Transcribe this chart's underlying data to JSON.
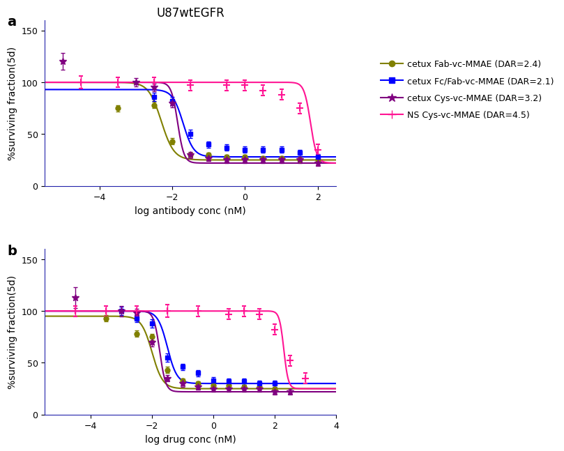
{
  "title_a": "U87wtEGFR",
  "panel_a_label": "a",
  "panel_b_label": "b",
  "xlabel_a": "log antibody conc (nM)",
  "xlabel_b": "log drug conc (nM)",
  "ylabel": "%surviving fraction(5d)",
  "ylim": [
    0,
    160
  ],
  "yticks": [
    0,
    50,
    100,
    150
  ],
  "legend_labels": [
    "cetux Fab-vc-MMAE (DAR=2.4)",
    "cetux Fc/Fab-vc-MMAE (DAR=2.1)",
    "cetux Cys-vc-MMAE (DAR=3.2)",
    "NS Cys-vc-MMAE (DAR=4.5)"
  ],
  "colors": [
    "#808000",
    "#0000FF",
    "#800080",
    "#FF1493"
  ],
  "markers": [
    "o",
    "s",
    "*",
    "+"
  ],
  "panel_a": {
    "xlim": [
      -5.5,
      2.5
    ],
    "xticks": [
      -4,
      -2,
      0,
      2
    ],
    "series": [
      {
        "name": "cetux Fab-vc-MMAE",
        "color": "#808000",
        "marker": "o",
        "x_data": [
          -3.5,
          -2.5,
          -2.0,
          -1.5,
          -1.0,
          -0.5,
          0.0,
          0.5,
          1.0,
          1.5,
          2.0
        ],
        "y_data": [
          75,
          78,
          43,
          30,
          30,
          28,
          28,
          27,
          27,
          25,
          25
        ],
        "y_err": [
          3,
          3,
          3,
          2,
          2,
          2,
          2,
          2,
          2,
          2,
          2
        ],
        "ec50": -2.3,
        "hill": 2.5,
        "top": 100,
        "bottom": 25
      },
      {
        "name": "cetux Fc/Fab-vc-MMAE",
        "color": "#0000FF",
        "marker": "s",
        "x_data": [
          -2.5,
          -2.0,
          -1.5,
          -1.0,
          -0.5,
          0.0,
          0.5,
          1.0,
          1.5,
          2.0
        ],
        "y_data": [
          86,
          82,
          50,
          40,
          37,
          35,
          35,
          35,
          32,
          28
        ],
        "y_err": [
          4,
          4,
          4,
          3,
          3,
          3,
          3,
          3,
          3,
          3
        ],
        "ec50": -1.7,
        "hill": 3.0,
        "top": 93,
        "bottom": 28
      },
      {
        "name": "cetux Cys-vc-MMAE",
        "color": "#800080",
        "marker": "*",
        "x_data": [
          -5.0,
          -3.0,
          -2.5,
          -2.0,
          -1.5,
          -1.0,
          -0.5,
          0.0,
          0.5,
          1.0,
          1.5,
          2.0
        ],
        "y_data": [
          120,
          100,
          95,
          80,
          30,
          27,
          25,
          25,
          25,
          25,
          25,
          22
        ],
        "y_err": [
          8,
          4,
          4,
          4,
          3,
          3,
          3,
          3,
          3,
          3,
          3,
          3
        ],
        "ec50": -1.85,
        "hill": 5.0,
        "top": 100,
        "bottom": 22
      },
      {
        "name": "NS Cys-vc-MMAE",
        "color": "#FF1493",
        "marker": "+",
        "x_data": [
          -4.5,
          -3.5,
          -2.5,
          -1.5,
          -0.5,
          0.0,
          0.5,
          1.0,
          1.5,
          2.0
        ],
        "y_data": [
          100,
          100,
          100,
          97,
          97,
          97,
          92,
          88,
          75,
          35
        ],
        "y_err": [
          6,
          5,
          5,
          5,
          5,
          5,
          5,
          5,
          5,
          5
        ],
        "ec50": 1.8,
        "hill": 5.0,
        "top": 100,
        "bottom": 22
      }
    ]
  },
  "panel_b": {
    "xlim": [
      -5.5,
      4.0
    ],
    "xticks": [
      -4,
      -2,
      0,
      2,
      4
    ],
    "series": [
      {
        "name": "cetux Fab-vc-MMAE",
        "color": "#808000",
        "marker": "o",
        "x_data": [
          -3.5,
          -2.5,
          -2.0,
          -1.5,
          -1.0,
          -0.5,
          0.0,
          0.5,
          1.0,
          1.5,
          2.0
        ],
        "y_data": [
          93,
          78,
          75,
          43,
          33,
          30,
          28,
          28,
          27,
          27,
          25
        ],
        "y_err": [
          3,
          3,
          3,
          3,
          2,
          2,
          2,
          2,
          2,
          2,
          2
        ],
        "ec50": -2.0,
        "hill": 2.5,
        "top": 95,
        "bottom": 25
      },
      {
        "name": "cetux Fc/Fab-vc-MMAE",
        "color": "#0000FF",
        "marker": "s",
        "x_data": [
          -3.0,
          -2.5,
          -2.0,
          -1.5,
          -1.0,
          -0.5,
          0.0,
          0.5,
          1.0,
          1.5,
          2.0
        ],
        "y_data": [
          100,
          93,
          88,
          55,
          46,
          40,
          33,
          32,
          32,
          30,
          30
        ],
        "y_err": [
          4,
          4,
          4,
          4,
          3,
          3,
          3,
          3,
          3,
          3,
          3
        ],
        "ec50": -1.5,
        "hill": 2.8,
        "top": 100,
        "bottom": 30
      },
      {
        "name": "cetux Cys-vc-MMAE",
        "color": "#800080",
        "marker": "*",
        "x_data": [
          -4.5,
          -3.0,
          -2.5,
          -2.0,
          -1.5,
          -1.0,
          -0.5,
          0.0,
          0.5,
          1.0,
          1.5,
          2.0,
          2.5
        ],
        "y_data": [
          113,
          100,
          98,
          70,
          35,
          30,
          27,
          25,
          25,
          25,
          25,
          22,
          22
        ],
        "y_err": [
          10,
          5,
          4,
          4,
          3,
          3,
          3,
          3,
          3,
          3,
          3,
          3,
          3
        ],
        "ec50": -1.75,
        "hill": 4.5,
        "top": 100,
        "bottom": 22
      },
      {
        "name": "NS Cys-vc-MMAE",
        "color": "#FF1493",
        "marker": "+",
        "x_data": [
          -4.5,
          -3.5,
          -2.5,
          -1.5,
          -0.5,
          0.5,
          1.0,
          1.5,
          2.0,
          2.5,
          3.0
        ],
        "y_data": [
          100,
          100,
          100,
          100,
          100,
          97,
          100,
          97,
          82,
          52,
          35
        ],
        "y_err": [
          5,
          5,
          5,
          6,
          5,
          5,
          5,
          5,
          5,
          5,
          5
        ],
        "ec50": 2.3,
        "hill": 6.0,
        "top": 100,
        "bottom": 25
      }
    ]
  }
}
